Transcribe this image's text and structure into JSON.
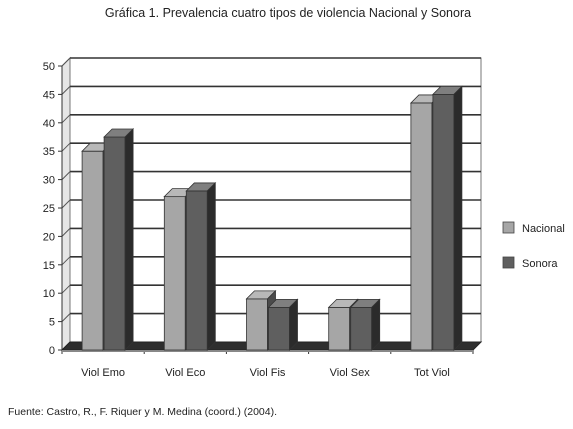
{
  "chart_data": {
    "type": "bar",
    "title": "Gráfica 1. Prevalencia cuatro tipos de violencia Nacional y Sonora",
    "categories": [
      "Viol Emo",
      "Viol Eco",
      "Viol Fis",
      "Viol Sex",
      "Tot Viol"
    ],
    "series": [
      {
        "name": "Nacional",
        "values": [
          35,
          27,
          9,
          7.5,
          43.5
        ],
        "color": "#a6a6a6"
      },
      {
        "name": "Sonora",
        "values": [
          37.5,
          28,
          7.5,
          7.5,
          45
        ],
        "color": "#5f5f5f"
      }
    ],
    "yticks": [
      "0",
      "5",
      "10",
      "15",
      "20",
      "25",
      "30",
      "35",
      "40",
      "45",
      "50"
    ],
    "ylim": [
      0,
      50
    ],
    "xlabel": "",
    "ylabel": "",
    "grid": true,
    "legend_position": "right",
    "three_d": true
  },
  "source_note": "Fuente: Castro, R., F. Riquer y M. Medina (coord.) (2004)."
}
